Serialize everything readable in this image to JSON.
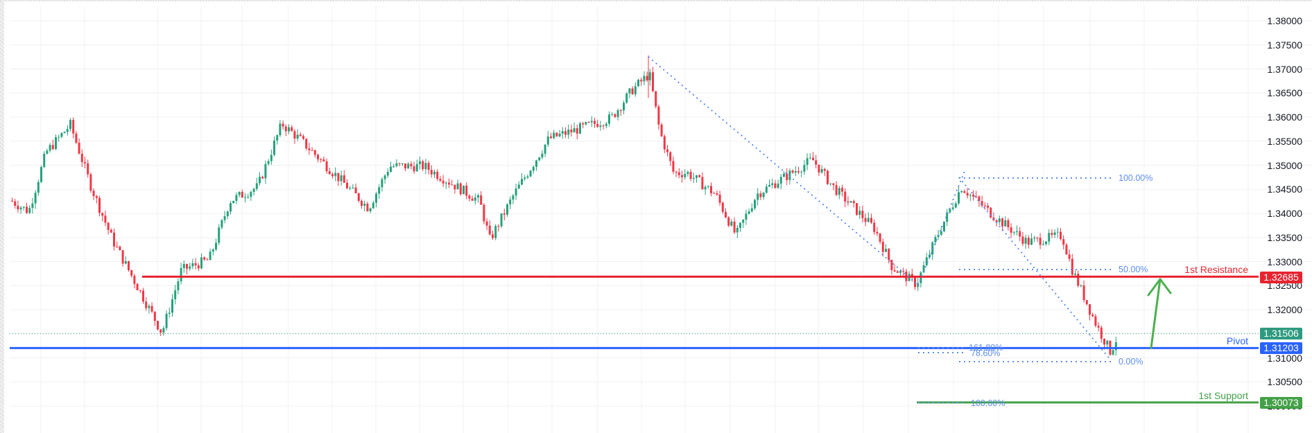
{
  "chart_data": {
    "type": "candlestick",
    "title": "",
    "xlabel": "",
    "ylabel": "",
    "ylim": [
      1.2985,
      1.3815
    ],
    "y_ticks": [
      "1.38000",
      "1.37500",
      "1.37000",
      "1.36500",
      "1.36000",
      "1.35500",
      "1.35000",
      "1.34500",
      "1.34000",
      "1.33500",
      "1.33000",
      "1.32500",
      "1.32000",
      "1.31500",
      "1.31000",
      "1.30500",
      "1.30000"
    ],
    "grid": true,
    "price_path": [
      [
        15,
        1.3426
      ],
      [
        40,
        1.3404
      ],
      [
        65,
        1.3527
      ],
      [
        100,
        1.3584
      ],
      [
        130,
        1.3455
      ],
      [
        160,
        1.3347
      ],
      [
        200,
        1.3239
      ],
      [
        232,
        1.3152
      ],
      [
        260,
        1.3282
      ],
      [
        300,
        1.3304
      ],
      [
        330,
        1.3426
      ],
      [
        370,
        1.3455
      ],
      [
        405,
        1.3586
      ],
      [
        430,
        1.3555
      ],
      [
        470,
        1.3498
      ],
      [
        530,
        1.3411
      ],
      [
        560,
        1.3498
      ],
      [
        610,
        1.3498
      ],
      [
        690,
        1.3426
      ],
      [
        705,
        1.3345
      ],
      [
        740,
        1.344
      ],
      [
        790,
        1.3555
      ],
      [
        880,
        1.3598
      ],
      [
        910,
        1.3656
      ],
      [
        935,
        1.369
      ],
      [
        950,
        1.357
      ],
      [
        970,
        1.3484
      ],
      [
        990,
        1.3484
      ],
      [
        1030,
        1.344
      ],
      [
        1060,
        1.3354
      ],
      [
        1090,
        1.344
      ],
      [
        1140,
        1.3484
      ],
      [
        1170,
        1.3512
      ],
      [
        1200,
        1.3455
      ],
      [
        1260,
        1.3368
      ],
      [
        1285,
        1.3289
      ],
      [
        1320,
        1.3253
      ],
      [
        1350,
        1.3354
      ],
      [
        1385,
        1.3455
      ],
      [
        1430,
        1.3397
      ],
      [
        1480,
        1.334
      ],
      [
        1530,
        1.3354
      ],
      [
        1545,
        1.3282
      ],
      [
        1580,
        1.3167
      ],
      [
        1600,
        1.3112
      ],
      [
        1612,
        1.3151
      ]
    ],
    "high_price": 1.3728,
    "last_price": 1.31506,
    "levels": [
      {
        "name": "1st Resistance",
        "price": 1.32685,
        "color": "#e8232f",
        "label": "1.32685"
      },
      {
        "name": "Pivot",
        "price": 1.31203,
        "color": "#2962ff",
        "label": "1.31203"
      },
      {
        "name": "1st Support",
        "price": 1.30073,
        "color": "#43a047",
        "label": "1.30073"
      }
    ],
    "current_price_label": "1.31506",
    "fibonacci": [
      {
        "levels": [
          {
            "pct": "100.00%",
            "price": 1.3474
          },
          {
            "pct": "50.00%",
            "price": 1.32845
          },
          {
            "pct": "0.00%",
            "price": 1.30935
          }
        ]
      },
      {
        "levels": [
          {
            "pct": "161.80%",
            "price": 1.31203
          },
          {
            "pct": "78.60%",
            "price": 1.311
          },
          {
            "pct": "100.00%",
            "price": 1.30073
          }
        ]
      }
    ],
    "annotations": [
      "1st Resistance",
      "Pivot",
      "1st Support",
      "green up arrow from Pivot toward 1st Resistance"
    ]
  },
  "colors": {
    "up": "#26a17b",
    "down": "#f23645",
    "grid": "#f0f0f0",
    "fib": "#5b8ef0",
    "axis_text": "#131722",
    "current_price": "#2e9b80"
  },
  "labels": {
    "resistance": "1st Resistance",
    "pivot": "Pivot",
    "support": "1st Support",
    "fib_100_top": "100.00%",
    "fib_50": "50.00%",
    "fib_0": "0.00%",
    "fib_161": "161.80%",
    "fib_786": "78.60%",
    "fib_100_bottom": "100.00%"
  },
  "badges": {
    "resistance": "1.32685",
    "current": "1.31506",
    "pivot": "1.31203",
    "support": "1.30073"
  },
  "axis": {
    "ticks": [
      "1.38000",
      "1.37500",
      "1.37000",
      "1.36500",
      "1.36000",
      "1.35500",
      "1.35000",
      "1.34500",
      "1.34000",
      "1.33500",
      "1.33000",
      "1.32500",
      "1.32000",
      "1.31500",
      "1.31000",
      "1.30500",
      "1.30000"
    ]
  }
}
